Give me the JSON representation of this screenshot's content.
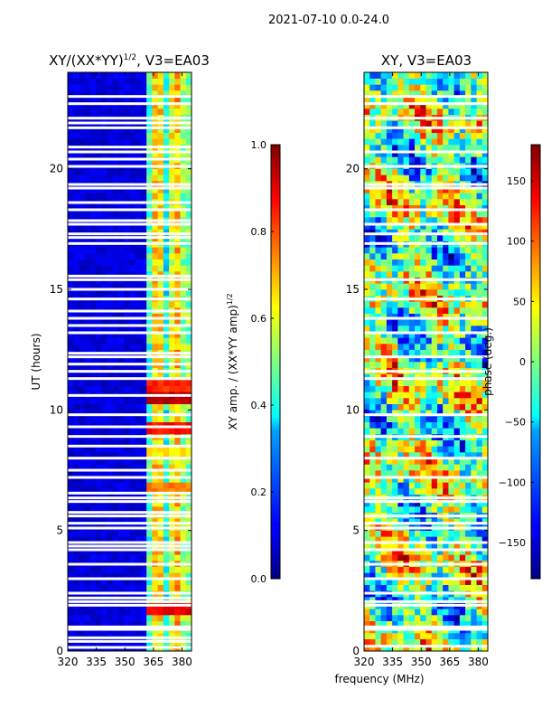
{
  "figure": {
    "suptitle": "2021-07-10 0.0-24.0",
    "shared_xlabel": "frequency (MHz)"
  },
  "chart_data": [
    {
      "type": "heatmap",
      "title_main": "XY/(XX*YY)",
      "title_sup": "1/2",
      "title_tail": ", V3=EA03",
      "xlabel": "",
      "ylabel": "UT (hours)",
      "xlim": [
        320,
        385
      ],
      "ylim": [
        0,
        24
      ],
      "xticks": [
        320,
        335,
        350,
        365,
        380
      ],
      "xtick_labels": [
        "320",
        "335",
        "350",
        "365",
        "380"
      ],
      "yticks": [
        0,
        5,
        10,
        15,
        20
      ],
      "ytick_labels": [
        "0",
        "5",
        "10",
        "15",
        "20"
      ],
      "colormap": "jet",
      "colorbar": {
        "label_main": "XY amp. / (XX*YY amp)",
        "label_sup": "1/2",
        "range": [
          0.0,
          1.0
        ],
        "ticks": [
          0.0,
          0.2,
          0.4,
          0.6,
          0.8,
          1.0
        ],
        "tick_labels": [
          "0.0",
          "0.2",
          "0.4",
          "0.6",
          "0.8",
          "1.0"
        ]
      },
      "flagged_hours": [
        0.15,
        0.4,
        0.55,
        0.9,
        1.0,
        1.9,
        2.05,
        2.2,
        2.4,
        3.0,
        3.6,
        4.2,
        4.35,
        4.5,
        5.1,
        5.3,
        5.6,
        5.75,
        6.2,
        6.35,
        6.55,
        7.2,
        7.5,
        8.0,
        8.5,
        8.9,
        9.3,
        9.8,
        10.6,
        11.3,
        11.6,
        11.9,
        12.2,
        12.35,
        13.2,
        13.5,
        13.8,
        14.1,
        14.6,
        15.0,
        15.4,
        15.55,
        16.9,
        17.15,
        17.3,
        17.7,
        17.85,
        18.3,
        18.6,
        19.2,
        19.35,
        20.1,
        20.4,
        20.7,
        20.9,
        21.7,
        21.9,
        22.1,
        22.7,
        23.0
      ],
      "high_value_rows": [
        {
          "hour": 1.8,
          "value": 0.85
        },
        {
          "hour": 6.7,
          "value": 0.72
        },
        {
          "hour": 8.2,
          "value": 0.6
        },
        {
          "hour": 9.3,
          "value": 0.82
        },
        {
          "hour": 10.4,
          "value": 0.9
        },
        {
          "hour": 10.7,
          "value": 0.92
        },
        {
          "hour": 11.0,
          "value": 0.8
        }
      ]
    },
    {
      "type": "heatmap",
      "title": "XY, V3=EA03",
      "xlabel": "frequency (MHz)",
      "ylabel": "",
      "xlim": [
        320,
        385
      ],
      "ylim": [
        0,
        24
      ],
      "xticks": [
        320,
        335,
        350,
        365,
        380
      ],
      "xtick_labels": [
        "320",
        "335",
        "350",
        "365",
        "380"
      ],
      "yticks": [
        0,
        5,
        10,
        15,
        20
      ],
      "ytick_labels": [
        "0",
        "5",
        "10",
        "15",
        "20"
      ],
      "colormap": "jet",
      "colorbar": {
        "label": "phase (deg.)",
        "range": [
          -180,
          180
        ],
        "ticks": [
          -150,
          -100,
          -50,
          0,
          50,
          100,
          150
        ],
        "tick_labels": [
          "−150",
          "−100",
          "−50",
          "0",
          "50",
          "100",
          "150"
        ]
      },
      "flagged_hours": [
        0.2,
        0.9,
        1.0,
        1.9,
        2.05,
        2.4,
        3.0,
        3.6,
        4.2,
        4.5,
        5.1,
        5.3,
        5.6,
        6.2,
        6.35,
        7.2,
        8.0,
        8.9,
        9.8,
        11.3,
        11.6,
        12.2,
        13.2,
        13.8,
        14.6,
        15.4,
        16.9,
        17.3,
        17.7,
        18.3,
        19.2,
        19.35,
        20.1,
        20.7,
        21.7,
        22.1,
        22.7,
        23.0
      ]
    }
  ]
}
